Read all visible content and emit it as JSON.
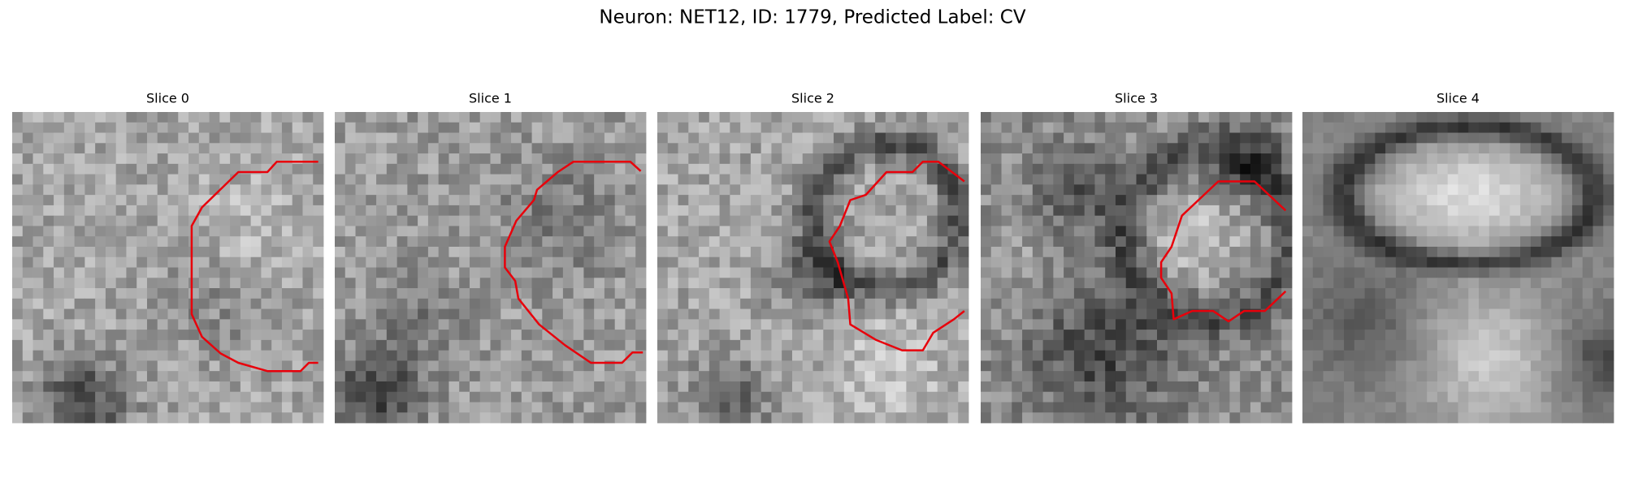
{
  "header": {
    "title": "Neuron: NET12, ID: 1779, Predicted Label: CV"
  },
  "panels": [
    {
      "title": "Slice 0"
    },
    {
      "title": "Slice 1"
    },
    {
      "title": "Slice 2"
    },
    {
      "title": "Slice 3"
    },
    {
      "title": "Slice 4"
    }
  ]
}
